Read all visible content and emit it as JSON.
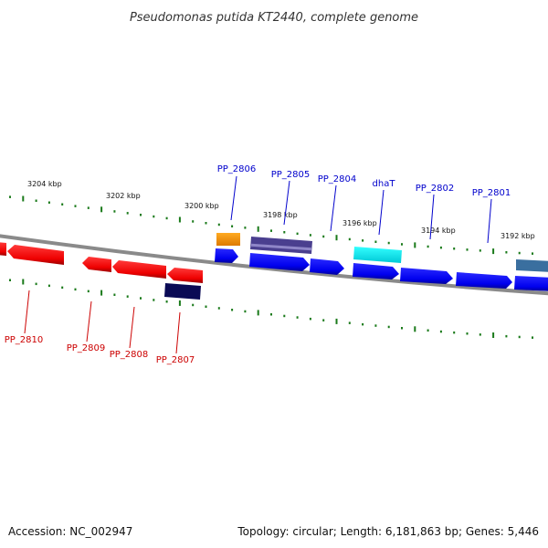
{
  "title": "Pseudomonas putida KT2440, complete genome",
  "footer": {
    "accession": "Accession: NC_002947",
    "summary": "Topology: circular; Length: 6,181,863 bp; Genes: 5,446"
  },
  "scale_labels": [
    "3204 kbp",
    "3202 kbp",
    "3200 kbp",
    "3198 kbp",
    "3196 kbp",
    "3194 kbp",
    "3192 kbp"
  ],
  "genes_forward": [
    {
      "label": "PP_2806",
      "color": "#0000cc"
    },
    {
      "label": "PP_2805",
      "color": "#0000cc"
    },
    {
      "label": "PP_2804",
      "color": "#0000cc"
    },
    {
      "label": "dhaT",
      "color": "#0000cc"
    },
    {
      "label": "PP_2802",
      "color": "#0000cc"
    },
    {
      "label": "PP_2801",
      "color": "#0000cc"
    }
  ],
  "genes_reverse": [
    {
      "label": "PP_2810",
      "color": "#cc0000"
    },
    {
      "label": "PP_2809",
      "color": "#cc0000"
    },
    {
      "label": "PP_2808",
      "color": "#cc0000"
    },
    {
      "label": "PP_2807",
      "color": "#cc0000"
    }
  ],
  "colors": {
    "forward_gene": "#0000ff",
    "reverse_gene": "#ff0000",
    "backbone": "#888888",
    "tick": "#1a7a1a",
    "feature_orange": "#ff9900",
    "feature_purple": "#4a3f8f",
    "feature_cyan": "#00e5e5",
    "feature_navy": "#0a0a55",
    "feature_steel": "#3a6f9f"
  }
}
